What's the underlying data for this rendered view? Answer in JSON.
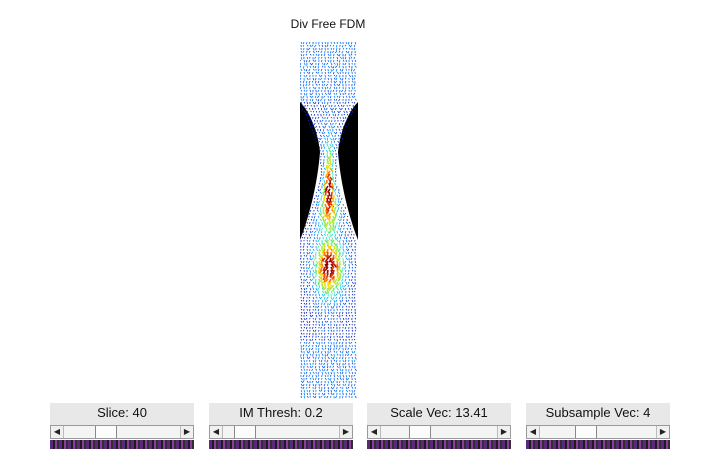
{
  "figure": {
    "title": "Div Free FDM"
  },
  "controls": [
    {
      "id": "slice",
      "label": "Slice: 40",
      "position": 0.33
    },
    {
      "id": "im-thresh",
      "label": "IM Thresh: 0.2",
      "position": 0.12
    },
    {
      "id": "scale-vec",
      "label": "Scale Vec: 13.41",
      "position": 0.3
    },
    {
      "id": "subsample-vec",
      "label": "Subsample Vec: 4",
      "position": 0.37
    }
  ],
  "colors": {
    "panel": "#e8e8e8",
    "background": "#ffffff"
  }
}
